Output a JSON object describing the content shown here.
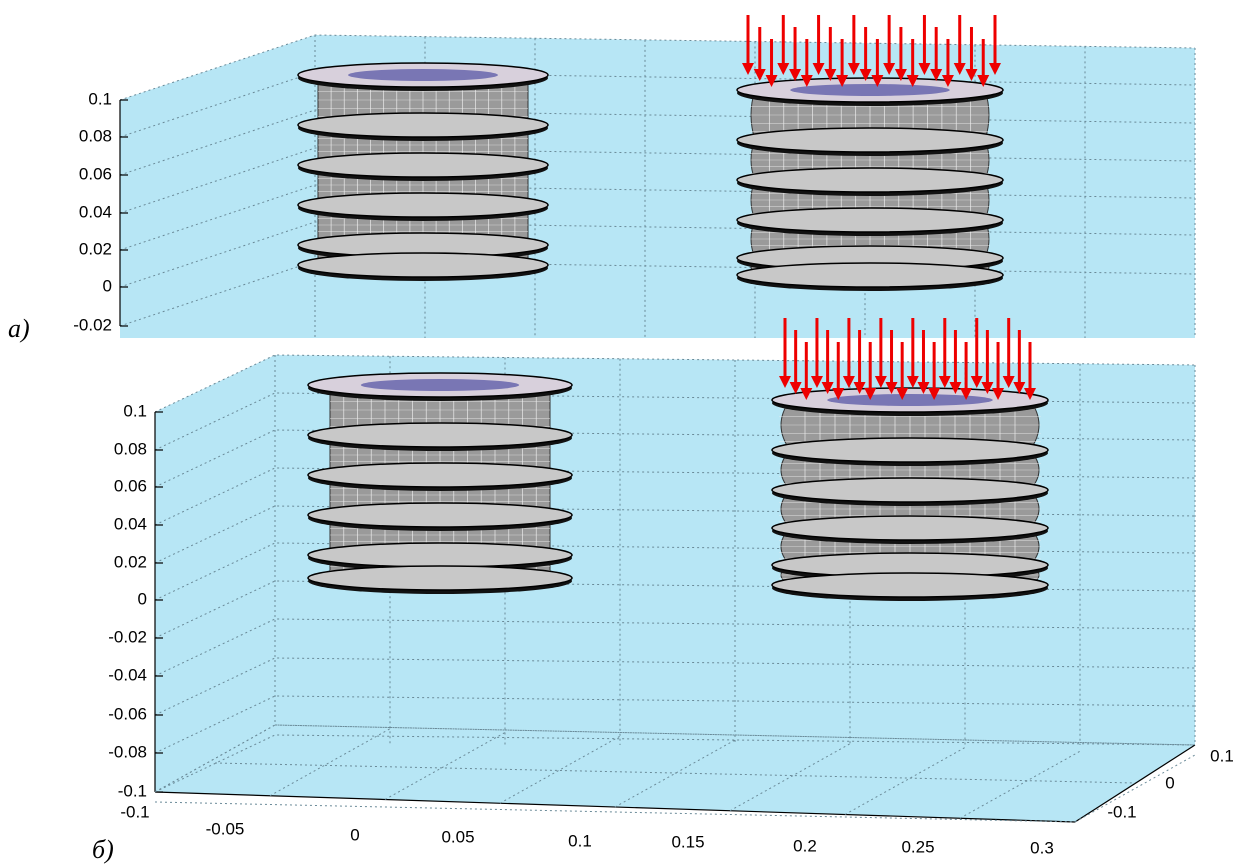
{
  "panels": [
    {
      "label": "а)",
      "z_ticks": [
        0.1,
        0.08,
        0.06,
        0.04,
        0.02,
        0,
        -0.02
      ]
    },
    {
      "label": "б)",
      "z_ticks": [
        0.1,
        0.08,
        0.06,
        0.04,
        0.02,
        0,
        -0.02,
        -0.04,
        -0.06,
        -0.08,
        -0.1
      ],
      "x_ticks": [
        -0.1,
        -0.05,
        0,
        0.05,
        0.1,
        0.15,
        0.2,
        0.25,
        0.3
      ],
      "y_ticks": [
        0.1,
        0,
        -0.1
      ]
    }
  ]
}
